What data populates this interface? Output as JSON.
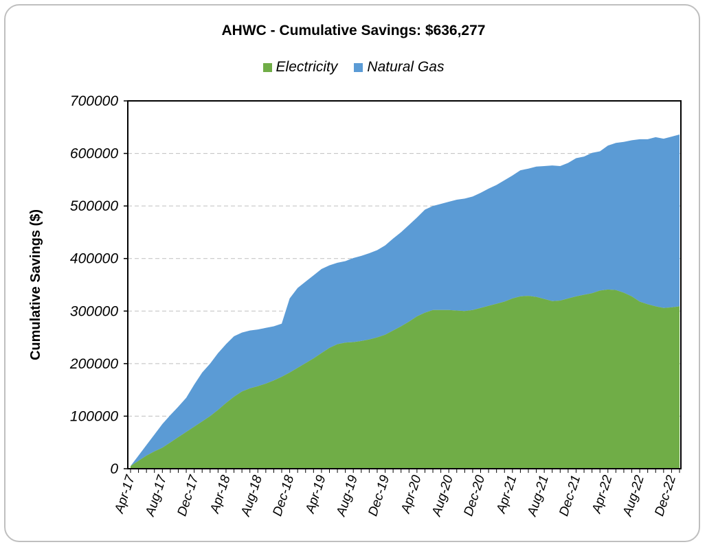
{
  "chart_data": {
    "type": "area",
    "stacked": true,
    "title": "AHWC - Cumulative Savings: $636,277",
    "ylabel": "Cumulative Savings ($)",
    "xlabel": "",
    "ylim": [
      0,
      700000
    ],
    "yticks": [
      0,
      100000,
      200000,
      300000,
      400000,
      500000,
      600000,
      700000
    ],
    "grid": true,
    "legend_position": "top",
    "x_tick_labels": [
      "Apr-17",
      "Aug-17",
      "Dec-17",
      "Apr-18",
      "Aug-18",
      "Dec-18",
      "Apr-19",
      "Aug-19",
      "Dec-19",
      "Apr-20",
      "Aug-20",
      "Dec-20",
      "Apr-21",
      "Aug-21",
      "Dec-21",
      "Apr-22",
      "Aug-22",
      "Dec-22"
    ],
    "x": [
      "Apr-17",
      "May-17",
      "Jun-17",
      "Jul-17",
      "Aug-17",
      "Sep-17",
      "Oct-17",
      "Nov-17",
      "Dec-17",
      "Jan-18",
      "Feb-18",
      "Mar-18",
      "Apr-18",
      "May-18",
      "Jun-18",
      "Jul-18",
      "Aug-18",
      "Sep-18",
      "Oct-18",
      "Nov-18",
      "Dec-18",
      "Jan-19",
      "Feb-19",
      "Mar-19",
      "Apr-19",
      "May-19",
      "Jun-19",
      "Jul-19",
      "Aug-19",
      "Sep-19",
      "Oct-19",
      "Nov-19",
      "Dec-19",
      "Jan-20",
      "Feb-20",
      "Mar-20",
      "Apr-20",
      "May-20",
      "Jun-20",
      "Jul-20",
      "Aug-20",
      "Sep-20",
      "Oct-20",
      "Nov-20",
      "Dec-20",
      "Jan-21",
      "Feb-21",
      "Mar-21",
      "Apr-21",
      "May-21",
      "Jun-21",
      "Jul-21",
      "Aug-21",
      "Sep-21",
      "Oct-21",
      "Nov-21",
      "Dec-21",
      "Jan-22",
      "Feb-22",
      "Mar-22",
      "Apr-22",
      "May-22",
      "Jun-22",
      "Jul-22",
      "Aug-22",
      "Sep-22",
      "Oct-22",
      "Nov-22",
      "Dec-22",
      "Jan-23"
    ],
    "series": [
      {
        "name": "Electricity",
        "color": "#70ad47",
        "values": [
          5000,
          15000,
          25000,
          33000,
          40000,
          50000,
          60000,
          70000,
          80000,
          90000,
          100000,
          112000,
          125000,
          137000,
          147000,
          153000,
          157000,
          162000,
          168000,
          175000,
          183000,
          192000,
          201000,
          210000,
          220000,
          230000,
          237000,
          240000,
          241000,
          243000,
          246000,
          250000,
          255000,
          263000,
          271000,
          280000,
          290000,
          297000,
          302000,
          302000,
          302000,
          301000,
          300000,
          302000,
          306000,
          310000,
          314000,
          318000,
          324000,
          328000,
          329000,
          327000,
          323000,
          319000,
          320000,
          324000,
          328000,
          331000,
          334000,
          339000,
          341000,
          340000,
          335000,
          328000,
          318000,
          313000,
          309000,
          306000,
          307000,
          309000
        ]
      },
      {
        "name": "Natural Gas",
        "color": "#5b9bd5",
        "values": [
          0,
          10000,
          20000,
          32000,
          45000,
          52000,
          58000,
          65000,
          80000,
          93000,
          100000,
          108000,
          112000,
          115000,
          112000,
          110000,
          108000,
          106000,
          103000,
          101000,
          141000,
          152000,
          155000,
          158000,
          160000,
          157000,
          155000,
          155000,
          160000,
          162000,
          164000,
          166000,
          170000,
          175000,
          179000,
          184000,
          188000,
          196000,
          198000,
          202000,
          206000,
          211000,
          214000,
          216000,
          219000,
          223000,
          226000,
          231000,
          234000,
          240000,
          242000,
          248000,
          253000,
          258000,
          256000,
          258000,
          263000,
          263000,
          267000,
          265000,
          274000,
          280000,
          287000,
          297000,
          309000,
          314000,
          322000,
          322000,
          325000,
          327000
        ]
      }
    ]
  }
}
